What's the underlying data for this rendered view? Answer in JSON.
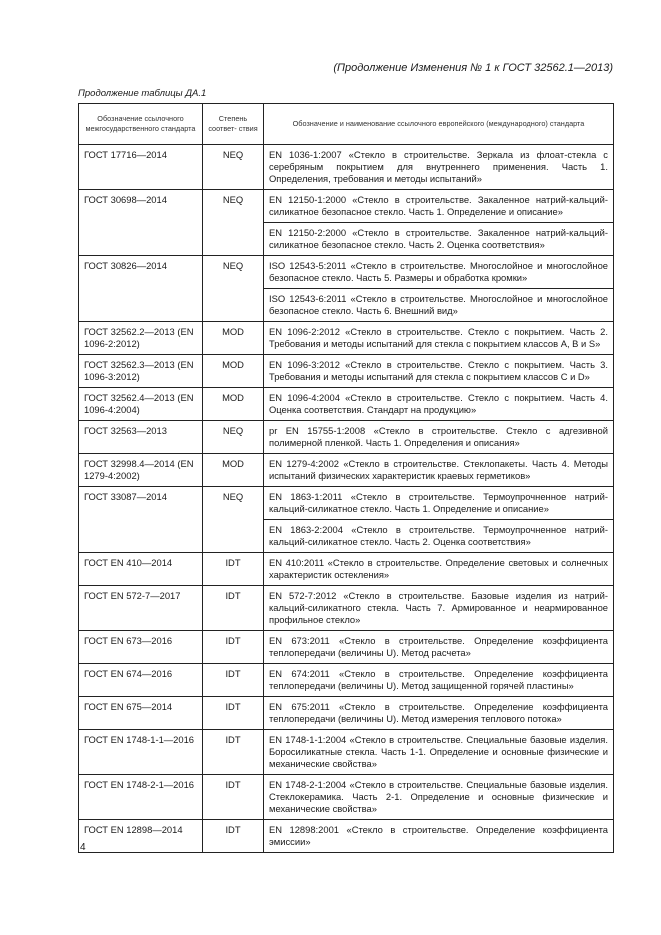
{
  "running_header": "(Продолжение Изменения № 1 к ГОСТ 32562.1—2013)",
  "table_caption": "Продолжение таблицы ДА.1",
  "table": {
    "headers": [
      "Обозначение ссылочного межгосударственного стандарта",
      "Степень соответ- ствия",
      "Обозначение и наименование ссылочного европейского (международного) стандарта"
    ],
    "rows": [
      {
        "gost": "ГОСТ 17716—2014",
        "degree": "NEQ",
        "refs": [
          "EN 1036-1:2007 «Стекло в строительстве. Зеркала из флоат-стекла с серебряным покрытием для внутреннего применения. Часть 1. Определения, требования и методы испытаний»"
        ]
      },
      {
        "gost": "ГОСТ 30698—2014",
        "degree": "NEQ",
        "refs": [
          "EN 12150-1:2000 «Стекло в строительстве. Закаленное натрий-кальций-силикатное безопасное стекло. Часть 1. Определение и описание»",
          "EN 12150-2:2000 «Стекло в строительстве. Закаленное натрий-кальций-силикатное безопасное стекло. Часть 2. Оценка соответствия»"
        ]
      },
      {
        "gost": "ГОСТ 30826—2014",
        "degree": "NEQ",
        "refs": [
          "ISO 12543-5:2011 «Стекло в строительстве. Многослойное и многослойное безопасное стекло. Часть 5. Размеры и обработка кромки»",
          "ISO 12543-6:2011 «Стекло в строительстве. Многослойное и многослойное безопасное стекло. Часть 6. Внешний вид»"
        ]
      },
      {
        "gost": "ГОСТ 32562.2—2013 (EN 1096-2:2012)",
        "degree": "MOD",
        "refs": [
          "EN 1096-2:2012 «Стекло в строительстве. Стекло с покрытием. Часть 2. Требования и методы испытаний для стекла с покрытием классов A, B и S»"
        ]
      },
      {
        "gost": "ГОСТ 32562.3—2013 (EN 1096-3:2012)",
        "degree": "MOD",
        "refs": [
          "EN 1096-3:2012 «Стекло в строительстве. Стекло с покрытием. Часть 3. Требования и методы испытаний для стекла с покрытием классов C и D»"
        ]
      },
      {
        "gost": "ГОСТ 32562.4—2013 (EN 1096-4:2004)",
        "degree": "MOD",
        "refs": [
          "EN 1096-4:2004 «Стекло в строительстве. Стекло с покрытием. Часть 4. Оценка соответствия. Стандарт на продукцию»"
        ]
      },
      {
        "gost": "ГОСТ 32563—2013",
        "degree": "NEQ",
        "refs": [
          "pr EN 15755-1:2008 «Стекло в строительстве. Стекло с адгезивной полимерной пленкой. Часть 1. Определения и описания»"
        ]
      },
      {
        "gost": "ГОСТ 32998.4—2014 (EN 1279-4:2002)",
        "degree": "MOD",
        "refs": [
          "EN 1279-4:2002 «Стекло в строительстве. Стеклопакеты. Часть 4. Методы испытаний физических характеристик краевых герметиков»"
        ]
      },
      {
        "gost": "ГОСТ 33087—2014",
        "degree": "NEQ",
        "refs": [
          "EN 1863-1:2011 «Стекло в строительстве. Термоупрочненное натрий-кальций-силикатное стекло. Часть 1. Определение и описание»",
          "EN 1863-2:2004 «Стекло в строительстве. Термоупрочненное натрий-кальций-силикатное стекло. Часть 2. Оценка соответствия»"
        ]
      },
      {
        "gost": "ГОСТ EN 410—2014",
        "degree": "IDT",
        "refs": [
          "EN 410:2011 «Стекло в строительстве. Определение световых и солнечных характеристик остекления»"
        ]
      },
      {
        "gost": "ГОСТ EN 572-7—2017",
        "degree": "IDT",
        "refs": [
          "EN 572-7:2012 «Стекло в строительстве. Базовые изделия из натрий-кальций-силикатного стекла. Часть 7. Армированное и неармированное профильное стекло»"
        ]
      },
      {
        "gost": "ГОСТ EN 673—2016",
        "degree": "IDT",
        "refs": [
          "EN 673:2011 «Стекло в строительстве. Определение коэффициента теплопередачи (величины U). Метод расчета»"
        ]
      },
      {
        "gost": "ГОСТ EN 674—2016",
        "degree": "IDT",
        "refs": [
          "EN 674:2011 «Стекло в строительстве. Определение коэффициента теплопередачи (величины U). Метод защищенной горячей пластины»"
        ]
      },
      {
        "gost": "ГОСТ EN 675—2014",
        "degree": "IDT",
        "refs": [
          "EN 675:2011 «Стекло в строительстве. Определение коэффициента теплопередачи (величины U). Метод измерения теплового потока»"
        ]
      },
      {
        "gost": "ГОСТ EN 1748-1-1—2016",
        "degree": "IDT",
        "refs": [
          "EN 1748-1-1:2004 «Стекло в строительстве. Специальные базовые изделия. Боросиликатные стекла. Часть 1-1. Определение и основные физические и механические свойства»"
        ]
      },
      {
        "gost": "ГОСТ EN 1748-2-1—2016",
        "degree": "IDT",
        "refs": [
          "EN 1748-2-1:2004 «Стекло в строительстве. Специальные базовые изделия. Стеклокерамика. Часть 2-1. Определение и основные физические и механические свойства»"
        ]
      },
      {
        "gost": "ГОСТ EN 12898—2014",
        "degree": "IDT",
        "refs": [
          "EN 12898:2001 «Стекло в строительстве. Определение коэффициента эмиссии»"
        ]
      }
    ]
  },
  "page_number": "4"
}
